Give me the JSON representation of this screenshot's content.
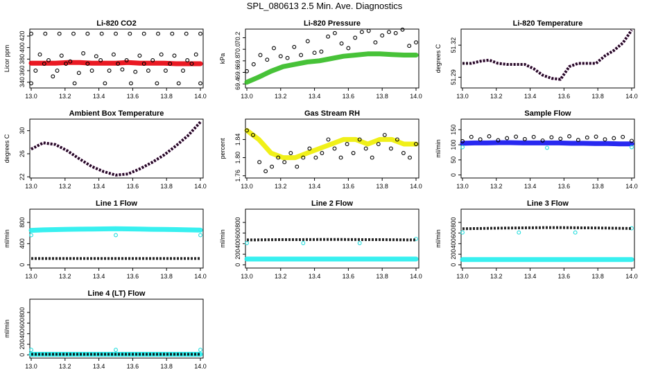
{
  "page": {
    "title": "SPL_080613  2.5 Min. Ave. Diagnostics"
  },
  "chart_data": [
    {
      "type": "scatter",
      "title": "Li-820 CO2",
      "ylabel": "Licor ppm",
      "xlim": [
        13.0,
        14.0
      ],
      "ylim": [
        330,
        432
      ],
      "xticks": [
        "13.0",
        "13.2",
        "13.4",
        "13.6",
        "13.8",
        "14.0"
      ],
      "yticks": [
        "340",
        "360",
        "380",
        "400",
        "420"
      ],
      "series": [
        {
          "color": "#e8000b",
          "kind": "band",
          "y": [
            373,
            373,
            373,
            374,
            374,
            373,
            373,
            373,
            374,
            373,
            373,
            373,
            372,
            372,
            372
          ]
        },
        {
          "color": "#000000",
          "kind": "points",
          "y": [
            338,
            360,
            388,
            372,
            378,
            350,
            360,
            386,
            372,
            376,
            338,
            356,
            390,
            372,
            360,
            385,
            378,
            338,
            360,
            388,
            372,
            362,
            378,
            338,
            358,
            386,
            372,
            360,
            378,
            338,
            388,
            360,
            372,
            386,
            338,
            360,
            378,
            372,
            388,
            338
          ]
        },
        {
          "color": "#000000",
          "kind": "points",
          "y": [
            424,
            424,
            424,
            424,
            424,
            424,
            424,
            424,
            424,
            424,
            424,
            424,
            424
          ]
        }
      ]
    },
    {
      "type": "scatter",
      "title": "Li-820 Pressure",
      "ylabel": "kPa",
      "xlim": [
        13.0,
        14.0
      ],
      "ylim": [
        69.33,
        70.35
      ],
      "xticks": [
        "13.0",
        "13.2",
        "13.4",
        "13.6",
        "13.8",
        "14.0"
      ],
      "yticks": [
        "69.4",
        "69.6",
        "69.8",
        "70.0",
        "70.2"
      ],
      "series": [
        {
          "color": "#33bb22",
          "kind": "band",
          "y": [
            69.43,
            69.52,
            69.62,
            69.7,
            69.74,
            69.78,
            69.8,
            69.84,
            69.88,
            69.9,
            69.92,
            69.92,
            69.91,
            69.9,
            69.9
          ]
        },
        {
          "color": "#000000",
          "kind": "points",
          "y": [
            69.62,
            69.74,
            69.9,
            69.82,
            70.02,
            69.88,
            69.85,
            70.04,
            69.9,
            70.14,
            69.94,
            69.96,
            70.22,
            70.28,
            70.1,
            70.02,
            70.2,
            70.3,
            70.32,
            70.12,
            70.24,
            70.3,
            70.28,
            70.34,
            70.06,
            70.12
          ]
        }
      ]
    },
    {
      "type": "scatter",
      "title": "Li-820 Temperature",
      "ylabel": "degrees C",
      "xlim": [
        13.0,
        14.0
      ],
      "ylim": [
        51.28,
        51.335
      ],
      "xticks": [
        "13.0",
        "13.2",
        "13.4",
        "13.6",
        "13.8",
        "14.0"
      ],
      "yticks": [
        "51.29",
        "51.32"
      ],
      "series": [
        {
          "color": "#ee22ee",
          "kind": "line",
          "y": [
            51.303,
            51.303,
            51.305,
            51.306,
            51.303,
            51.302,
            51.302,
            51.302,
            51.298,
            51.292,
            51.289,
            51.288,
            51.3,
            51.303,
            51.303,
            51.303,
            51.31,
            51.315,
            51.322,
            51.334
          ]
        },
        {
          "color": "#000000",
          "kind": "line",
          "y": [
            51.303,
            51.303,
            51.305,
            51.306,
            51.303,
            51.302,
            51.302,
            51.302,
            51.298,
            51.292,
            51.289,
            51.288,
            51.3,
            51.303,
            51.303,
            51.303,
            51.31,
            51.315,
            51.322,
            51.334
          ]
        }
      ]
    },
    {
      "type": "scatter",
      "title": "Ambient Box Temperature",
      "ylabel": "degrees C",
      "xlim": [
        13.0,
        14.0
      ],
      "ylim": [
        21.8,
        32.0
      ],
      "xticks": [
        "13.0",
        "13.2",
        "13.4",
        "13.6",
        "13.8",
        "14.0"
      ],
      "yticks": [
        "22",
        "26",
        "30"
      ],
      "series": [
        {
          "color": "#ee22ee",
          "kind": "line",
          "y": [
            26.8,
            27.9,
            27.6,
            26.5,
            25.1,
            23.8,
            22.9,
            22.3,
            22.5,
            23.4,
            24.5,
            25.8,
            27.4,
            29.2,
            31.5
          ]
        },
        {
          "color": "#000000",
          "kind": "line",
          "y": [
            26.8,
            27.9,
            27.6,
            26.5,
            25.1,
            23.8,
            22.9,
            22.3,
            22.5,
            23.4,
            24.5,
            25.8,
            27.4,
            29.2,
            31.5
          ]
        }
      ]
    },
    {
      "type": "scatter",
      "title": "Gas Stream RH",
      "ylabel": "percent",
      "xlim": [
        13.0,
        14.0
      ],
      "ylim": [
        1.755,
        1.885
      ],
      "xticks": [
        "13.0",
        "13.2",
        "13.4",
        "13.6",
        "13.8",
        "14.0"
      ],
      "yticks": [
        "1.76",
        "1.80",
        "1.84"
      ],
      "series": [
        {
          "color": "#eeee00",
          "kind": "band",
          "y": [
            1.86,
            1.84,
            1.81,
            1.8,
            1.8,
            1.81,
            1.82,
            1.83,
            1.84,
            1.84,
            1.83,
            1.84,
            1.84,
            1.83,
            1.83
          ]
        },
        {
          "color": "#000000",
          "kind": "points",
          "y": [
            1.86,
            1.85,
            1.79,
            1.77,
            1.78,
            1.8,
            1.79,
            1.81,
            1.78,
            1.8,
            1.82,
            1.8,
            1.81,
            1.84,
            1.82,
            1.8,
            1.83,
            1.81,
            1.84,
            1.82,
            1.8,
            1.83,
            1.85,
            1.82,
            1.84,
            1.81,
            1.8,
            1.83
          ]
        }
      ]
    },
    {
      "type": "scatter",
      "title": "Sample Flow",
      "ylabel": "ml/min",
      "xlim": [
        13.0,
        14.0
      ],
      "ylim": [
        -10,
        185
      ],
      "xticks": [
        "13.0",
        "13.2",
        "13.4",
        "13.6",
        "13.8",
        "14.0"
      ],
      "yticks": [
        "0",
        "50",
        "100",
        "150"
      ],
      "series": [
        {
          "color": "#1111ee",
          "kind": "band",
          "y": [
            105,
            106,
            106,
            107,
            107,
            106,
            106,
            106,
            106,
            105,
            105,
            104,
            104,
            103,
            103
          ]
        },
        {
          "color": "#000000",
          "kind": "points",
          "y": [
            112,
            126,
            118,
            128,
            115,
            122,
            127,
            119,
            126,
            114,
            125,
            120,
            128,
            116,
            124,
            127,
            118,
            122,
            126,
            113
          ]
        },
        {
          "color": "#22dddd",
          "kind": "points",
          "y": [
            92,
            90,
            92
          ]
        }
      ]
    },
    {
      "type": "scatter",
      "title": "Line 1 Flow",
      "ylabel": "ml/min",
      "xlim": [
        13.0,
        14.0
      ],
      "ylim": [
        -60,
        1050
      ],
      "xticks": [
        "13.0",
        "13.2",
        "13.4",
        "13.6",
        "13.8",
        "14.0"
      ],
      "yticks": [
        "0",
        "400",
        "800"
      ],
      "series": [
        {
          "color": "#22eeee",
          "kind": "band",
          "y": [
            650,
            660,
            665,
            670,
            672,
            675,
            678,
            680,
            678,
            675,
            670,
            668,
            665,
            660,
            655
          ]
        },
        {
          "color": "#22dddd",
          "kind": "points",
          "y": [
            560,
            560,
            560
          ]
        },
        {
          "color": "#000000",
          "kind": "line",
          "y": [
            120,
            120,
            120,
            120,
            120,
            120,
            120,
            120,
            120,
            120,
            120,
            120,
            120,
            120,
            120
          ]
        }
      ]
    },
    {
      "type": "scatter",
      "title": "Line 2 Flow",
      "ylabel": "ml/min",
      "xlim": [
        13.0,
        14.0
      ],
      "ylim": [
        -60,
        1050
      ],
      "xticks": [
        "13.0",
        "13.2",
        "13.4",
        "13.6",
        "13.8",
        "14.0"
      ],
      "yticks": [
        "0",
        "200",
        "400",
        "600",
        "800"
      ],
      "series": [
        {
          "color": "#22eeee",
          "kind": "band",
          "y": [
            110,
            110,
            110,
            110,
            110,
            110,
            110,
            110,
            110,
            110,
            110,
            110,
            110,
            110,
            110
          ]
        },
        {
          "color": "#22dddd",
          "kind": "points",
          "y": [
            410,
            410,
            410,
            490
          ]
        },
        {
          "color": "#000000",
          "kind": "line",
          "y": [
            470,
            472,
            474,
            475,
            476,
            477,
            478,
            478,
            478,
            477,
            476,
            475,
            474,
            472,
            470
          ]
        }
      ]
    },
    {
      "type": "scatter",
      "title": "Line 3 Flow",
      "ylabel": "ml/min",
      "xlim": [
        13.0,
        14.0
      ],
      "ylim": [
        -60,
        1050
      ],
      "xticks": [
        "13.0",
        "13.2",
        "13.4",
        "13.6",
        "13.8",
        "14.0"
      ],
      "yticks": [
        "0",
        "200",
        "400",
        "600",
        "800"
      ],
      "series": [
        {
          "color": "#22eeee",
          "kind": "band",
          "y": [
            100,
            100,
            100,
            100,
            100,
            100,
            100,
            100,
            100,
            100,
            100,
            100,
            100,
            100,
            100
          ]
        },
        {
          "color": "#22dddd",
          "kind": "points",
          "y": [
            610,
            610,
            610,
            690
          ]
        },
        {
          "color": "#000000",
          "kind": "line",
          "y": [
            680,
            684,
            688,
            692,
            695,
            698,
            700,
            702,
            702,
            700,
            698,
            696,
            694,
            690,
            686
          ]
        }
      ]
    },
    {
      "type": "scatter",
      "title": "Line 4 (LT) Flow",
      "ylabel": "ml/min",
      "xlim": [
        13.0,
        14.0
      ],
      "ylim": [
        -60,
        1050
      ],
      "xticks": [
        "13.0",
        "13.2",
        "13.4",
        "13.6",
        "13.8",
        "14.0"
      ],
      "yticks": [
        "0",
        "200",
        "400",
        "600",
        "800"
      ],
      "series": [
        {
          "color": "#22eeee",
          "kind": "band",
          "y": [
            12,
            12,
            12,
            12,
            12,
            12,
            12,
            12,
            12,
            12,
            12,
            12,
            12,
            12,
            12
          ]
        },
        {
          "color": "#22dddd",
          "kind": "points",
          "y": [
            95,
            95,
            95
          ]
        },
        {
          "color": "#000000",
          "kind": "line",
          "y": [
            12,
            12,
            12,
            12,
            12,
            12,
            12,
            12,
            12,
            12,
            12,
            12,
            12,
            12,
            12
          ]
        }
      ]
    }
  ]
}
